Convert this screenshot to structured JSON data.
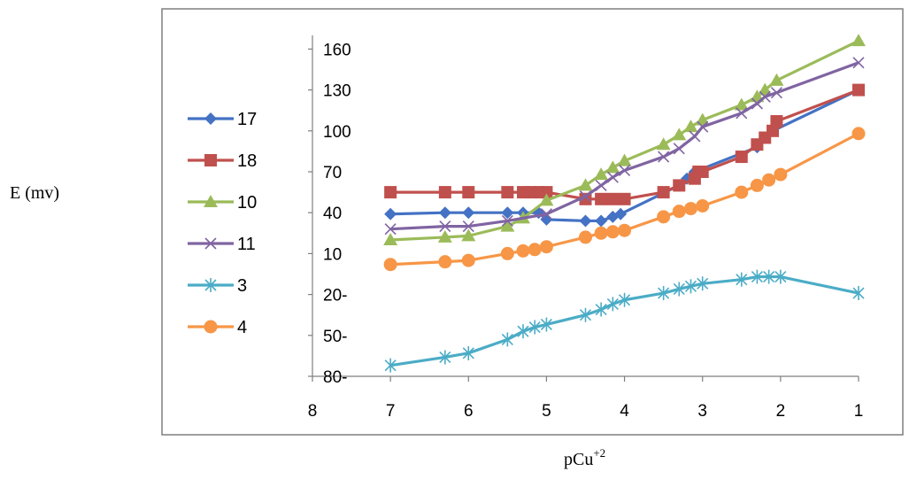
{
  "chart_data": {
    "type": "line",
    "ylabel": "E (mv)",
    "xlabel_base": "pCu",
    "xlabel_sup": "+2",
    "xlim": [
      8,
      1
    ],
    "x_reversed": true,
    "ylim": [
      -80,
      170
    ],
    "x_ticks": [
      "8",
      "7",
      "6",
      "5",
      "4",
      "3",
      "2",
      "1"
    ],
    "y_ticks": [
      "160",
      "130",
      "100",
      "70",
      "40",
      "10",
      "20-",
      "50-",
      "80-"
    ],
    "y_tick_values": [
      160,
      130,
      100,
      70,
      40,
      10,
      -20,
      -50,
      -80
    ],
    "grid": false,
    "legend_position": "left",
    "series": [
      {
        "name": "17",
        "color": "#4472C4",
        "marker": "diamond",
        "points": [
          [
            7,
            39
          ],
          [
            6.3,
            40
          ],
          [
            6,
            40
          ],
          [
            5.5,
            40
          ],
          [
            5.3,
            40
          ],
          [
            5.1,
            40
          ],
          [
            5,
            35
          ],
          [
            4.5,
            34
          ],
          [
            4.3,
            34
          ],
          [
            4.15,
            37
          ],
          [
            4.05,
            39
          ],
          [
            3.3,
            60
          ],
          [
            3.2,
            65
          ],
          [
            3.1,
            70
          ],
          [
            2.3,
            88
          ],
          [
            2.2,
            95
          ],
          [
            2.1,
            100
          ],
          [
            1,
            130
          ]
        ]
      },
      {
        "name": "18",
        "color": "#C0504D",
        "marker": "square",
        "points": [
          [
            7,
            55
          ],
          [
            6.3,
            55
          ],
          [
            6,
            55
          ],
          [
            5.5,
            55
          ],
          [
            5.3,
            55
          ],
          [
            5.2,
            55
          ],
          [
            5.1,
            55
          ],
          [
            5,
            55
          ],
          [
            4.5,
            50
          ],
          [
            4.3,
            50
          ],
          [
            4.15,
            50
          ],
          [
            4,
            50
          ],
          [
            3.5,
            55
          ],
          [
            3.3,
            60
          ],
          [
            3.1,
            65
          ],
          [
            3.05,
            70
          ],
          [
            3,
            70
          ],
          [
            2.5,
            81
          ],
          [
            2.3,
            90
          ],
          [
            2.2,
            95
          ],
          [
            2.1,
            100
          ],
          [
            2.05,
            107
          ],
          [
            1,
            130
          ]
        ]
      },
      {
        "name": "10",
        "color": "#9BBB59",
        "marker": "triangle",
        "points": [
          [
            7,
            20
          ],
          [
            6.3,
            22
          ],
          [
            6,
            23
          ],
          [
            5.5,
            30
          ],
          [
            5.3,
            36
          ],
          [
            5,
            49
          ],
          [
            4.5,
            60
          ],
          [
            4.3,
            68
          ],
          [
            4.15,
            73
          ],
          [
            4,
            78
          ],
          [
            3.5,
            90
          ],
          [
            3.3,
            97
          ],
          [
            3.15,
            103
          ],
          [
            3,
            108
          ],
          [
            2.5,
            119
          ],
          [
            2.3,
            125
          ],
          [
            2.2,
            130
          ],
          [
            2.05,
            137
          ],
          [
            1,
            166
          ]
        ]
      },
      {
        "name": "11",
        "color": "#8064A2",
        "marker": "x",
        "points": [
          [
            7,
            28
          ],
          [
            6.3,
            30
          ],
          [
            6,
            30
          ],
          [
            5.5,
            34
          ],
          [
            5,
            39
          ],
          [
            4.5,
            52
          ],
          [
            4.3,
            60
          ],
          [
            4.15,
            66
          ],
          [
            4,
            71
          ],
          [
            3.5,
            81
          ],
          [
            3.3,
            87
          ],
          [
            3.1,
            96
          ],
          [
            3,
            103
          ],
          [
            2.5,
            113
          ],
          [
            2.3,
            120
          ],
          [
            2.2,
            125
          ],
          [
            2.05,
            128
          ],
          [
            1,
            150
          ]
        ]
      },
      {
        "name": "3",
        "color": "#4BACC6",
        "marker": "star",
        "points": [
          [
            7,
            -72
          ],
          [
            6.3,
            -66
          ],
          [
            6,
            -63
          ],
          [
            5.5,
            -53
          ],
          [
            5.3,
            -47
          ],
          [
            5.15,
            -44
          ],
          [
            5,
            -42
          ],
          [
            4.5,
            -35
          ],
          [
            4.3,
            -31
          ],
          [
            4.15,
            -27
          ],
          [
            4,
            -24
          ],
          [
            3.5,
            -19
          ],
          [
            3.3,
            -16
          ],
          [
            3.15,
            -14
          ],
          [
            3,
            -12
          ],
          [
            2.5,
            -9
          ],
          [
            2.3,
            -7
          ],
          [
            2.15,
            -7
          ],
          [
            2,
            -7
          ],
          [
            1,
            -19
          ]
        ]
      },
      {
        "name": "4",
        "color": "#F79646",
        "marker": "circle",
        "points": [
          [
            7,
            2
          ],
          [
            6.3,
            4
          ],
          [
            6,
            5
          ],
          [
            5.5,
            10
          ],
          [
            5.3,
            12
          ],
          [
            5.15,
            13
          ],
          [
            5,
            15
          ],
          [
            4.5,
            22
          ],
          [
            4.3,
            25
          ],
          [
            4.15,
            26
          ],
          [
            4,
            27
          ],
          [
            3.5,
            37
          ],
          [
            3.3,
            41
          ],
          [
            3.15,
            43
          ],
          [
            3,
            45
          ],
          [
            2.5,
            55
          ],
          [
            2.3,
            60
          ],
          [
            2.15,
            64
          ],
          [
            2,
            68
          ],
          [
            1,
            98
          ]
        ]
      }
    ]
  }
}
